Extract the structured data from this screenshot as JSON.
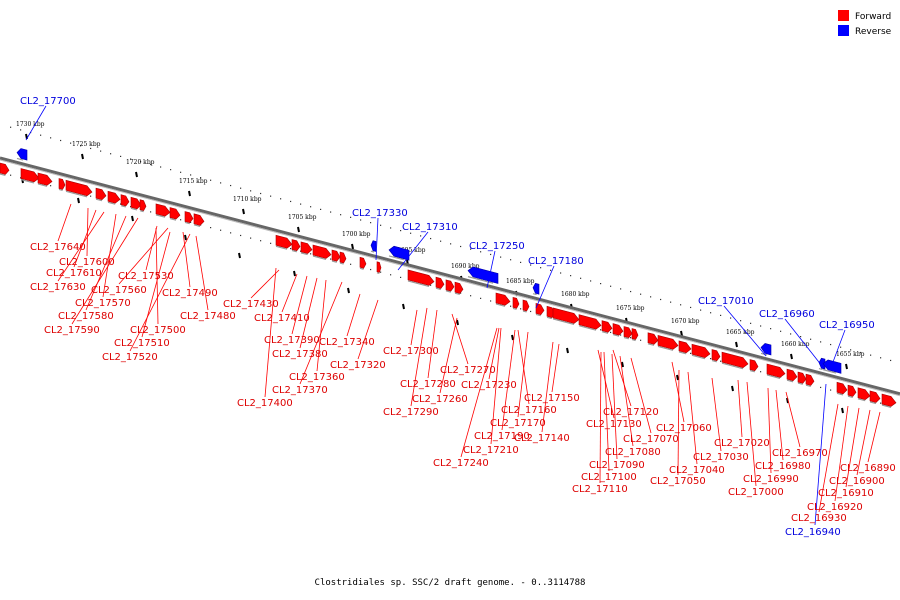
{
  "caption": "Clostridiales sp. SSC/2 draft genome. - 0..3114788",
  "legend": [
    {
      "label": "Forward",
      "color": "#ff0000"
    },
    {
      "label": "Reverse",
      "color": "#0000ff"
    }
  ],
  "colors": {
    "forward": "#ff0000",
    "reverse": "#0000ff",
    "forward_label": "#dd0000",
    "reverse_label": "#0000dd",
    "backbone": "#888888"
  },
  "scale_labels": [
    "1730 kbp",
    "1725 kbp",
    "1720 kbp",
    "1715 kbp",
    "1710 kbp",
    "1705 kbp",
    "1700 kbp",
    "1695 kbp",
    "1690 kbp",
    "1685 kbp",
    "1680 kbp",
    "1675 kbp",
    "1670 kbp",
    "1665 kbp",
    "1660 kbp",
    "1655 kbp"
  ],
  "reverse_genes": [
    "CL2_17700",
    "CL2_17330",
    "CL2_17310",
    "CL2_17250",
    "CL2_17180",
    "CL2_17010",
    "CL2_16960",
    "CL2_16950",
    "CL2_16940"
  ],
  "forward_genes": [
    "CL2_17640",
    "CL2_17600",
    "CL2_17610",
    "CL2_17630",
    "CL2_17570",
    "CL2_17580",
    "CL2_17590",
    "CL2_17530",
    "CL2_17560",
    "CL2_17490",
    "CL2_17480",
    "CL2_17500",
    "CL2_17510",
    "CL2_17520",
    "CL2_17430",
    "CL2_17410",
    "CL2_17390",
    "CL2_17380",
    "CL2_17360",
    "CL2_17370",
    "CL2_17400",
    "CL2_17340",
    "CL2_17320",
    "CL2_17300",
    "CL2_17270",
    "CL2_17280",
    "CL2_17260",
    "CL2_17290",
    "CL2_17230",
    "CL2_17160",
    "CL2_17170",
    "CL2_17190",
    "CL2_17210",
    "CL2_17240",
    "CL2_17150",
    "CL2_17140",
    "CL2_17120",
    "CL2_17130",
    "CL2_17060",
    "CL2_17070",
    "CL2_17080",
    "CL2_17090",
    "CL2_17100",
    "CL2_17110",
    "CL2_17040",
    "CL2_17050",
    "CL2_17020",
    "CL2_17030",
    "CL2_17000",
    "CL2_16970",
    "CL2_16980",
    "CL2_16990",
    "CL2_16890",
    "CL2_16900",
    "CL2_16910",
    "CL2_16920",
    "CL2_16930"
  ]
}
